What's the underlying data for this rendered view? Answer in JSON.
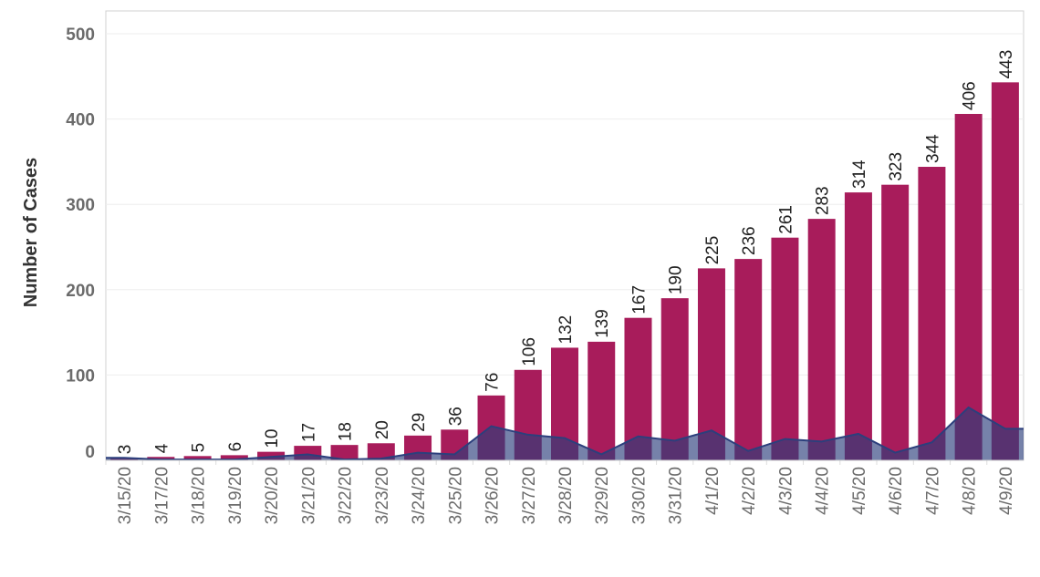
{
  "chart_data": {
    "type": "bar",
    "title": "",
    "xlabel": "",
    "ylabel": "Number of Cases",
    "ylim": [
      0,
      510
    ],
    "yticks": [
      0,
      100,
      200,
      300,
      400,
      500
    ],
    "grid": true,
    "categories": [
      "3/15/20",
      "3/17/20",
      "3/18/20",
      "3/19/20",
      "3/20/20",
      "3/21/20",
      "3/22/20",
      "3/23/20",
      "3/24/20",
      "3/25/20",
      "3/26/20",
      "3/27/20",
      "3/28/20",
      "3/29/20",
      "3/30/20",
      "3/31/20",
      "4/1/20",
      "4/2/20",
      "4/3/20",
      "4/4/20",
      "4/5/20",
      "4/6/20",
      "4/7/20",
      "4/8/20",
      "4/9/20"
    ],
    "series": [
      {
        "type": "bar",
        "color": "#a81c5b",
        "values": [
          3,
          4,
          5,
          6,
          10,
          17,
          18,
          20,
          29,
          36,
          76,
          106,
          132,
          139,
          167,
          190,
          225,
          236,
          261,
          283,
          314,
          323,
          344,
          406,
          443
        ],
        "data_labels": true
      },
      {
        "type": "area",
        "color": "#2c3f7c",
        "values": [
          3,
          1,
          1,
          1,
          4,
          7,
          1,
          2,
          9,
          7,
          40,
          30,
          26,
          7,
          28,
          23,
          35,
          11,
          25,
          22,
          31,
          9,
          21,
          62,
          37
        ],
        "data_labels": false
      }
    ]
  }
}
